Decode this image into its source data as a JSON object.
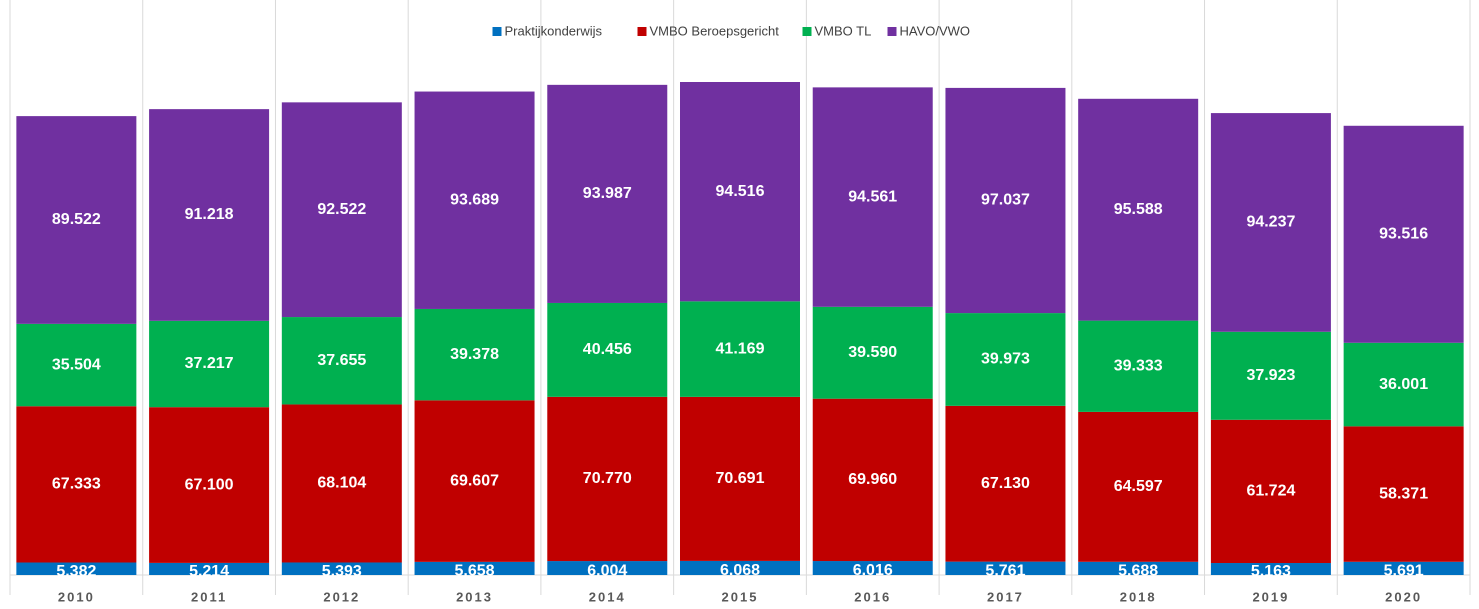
{
  "chart_data": {
    "type": "stacked_bar",
    "categories": [
      "2010",
      "2011",
      "2012",
      "2013",
      "2014",
      "2015",
      "2016",
      "2017",
      "2018",
      "2019",
      "2020"
    ],
    "series": [
      {
        "name": "Praktijkonderwijs",
        "color": "#0070c0",
        "values": [
          5382,
          5214,
          5393,
          5658,
          6004,
          6068,
          6016,
          5761,
          5688,
          5163,
          5691
        ],
        "value_labels": [
          "5.382",
          "5.214",
          "5.393",
          "5.658",
          "6.004",
          "6.068",
          "6.016",
          "5.761",
          "5.688",
          "5.163",
          "5.691"
        ]
      },
      {
        "name": "VMBO Beroepsgericht",
        "color": "#c00000",
        "values": [
          67333,
          67100,
          68104,
          69607,
          70770,
          70691,
          69960,
          67130,
          64597,
          61724,
          58371
        ],
        "value_labels": [
          "67.333",
          "67.100",
          "68.104",
          "69.607",
          "70.770",
          "70.691",
          "69.960",
          "67.130",
          "64.597",
          "61.724",
          "58.371"
        ]
      },
      {
        "name": "VMBO TL",
        "color": "#00b050",
        "values": [
          35504,
          37217,
          37655,
          39378,
          40456,
          41169,
          39590,
          39973,
          39333,
          37923,
          36001
        ],
        "value_labels": [
          "35.504",
          "37.217",
          "37.655",
          "39.378",
          "40.456",
          "41.169",
          "39.590",
          "39.973",
          "39.333",
          "37.923",
          "36.001"
        ]
      },
      {
        "name": "HAVO/VWO",
        "color": "#7030a0",
        "values": [
          89522,
          91218,
          92522,
          93689,
          93987,
          94516,
          94561,
          97037,
          95588,
          94237,
          93516
        ],
        "value_labels": [
          "89.522",
          "91.218",
          "92.522",
          "93.689",
          "93.987",
          "94.516",
          "94.561",
          "97.037",
          "95.588",
          "94.237",
          "93.516"
        ]
      }
    ]
  }
}
